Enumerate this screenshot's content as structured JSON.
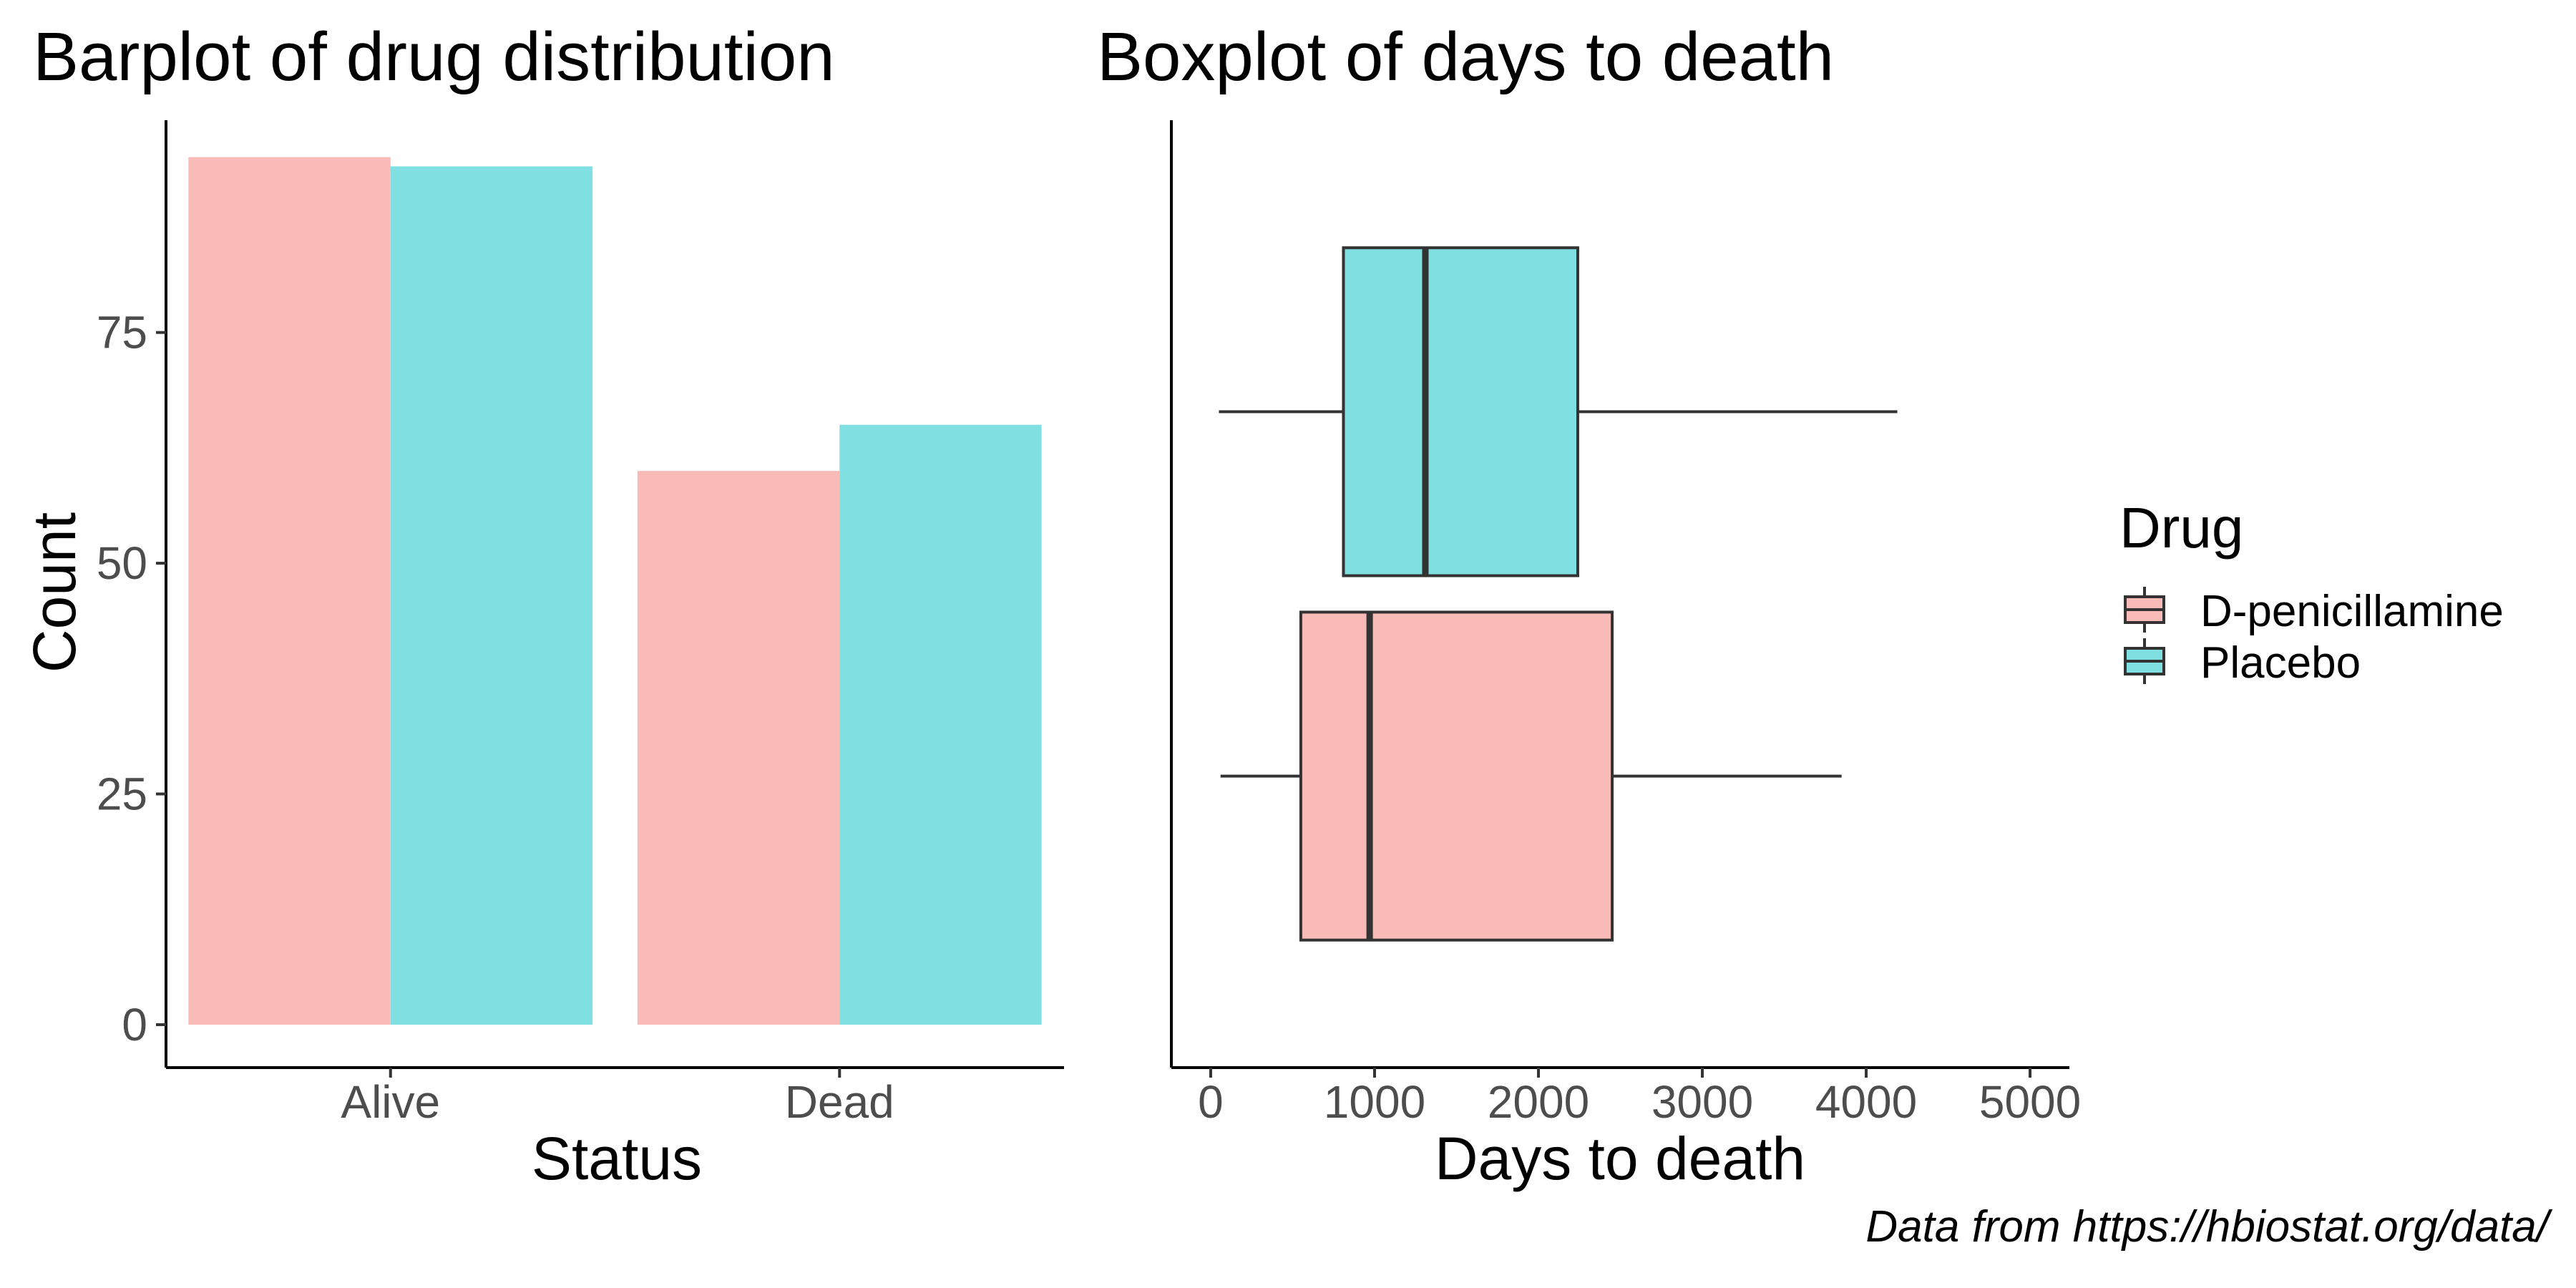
{
  "chart_data": [
    {
      "type": "bar",
      "title": "Barplot of drug distribution",
      "xlabel": "Status",
      "ylabel": "Count",
      "categories": [
        "Alive",
        "Dead"
      ],
      "series": [
        {
          "name": "D-penicillamine",
          "values": [
            94,
            60
          ]
        },
        {
          "name": "Placebo",
          "values": [
            93,
            65
          ]
        }
      ],
      "ylim": [
        0,
        98
      ],
      "yticks": [
        0,
        25,
        50,
        75
      ],
      "grid": false
    },
    {
      "type": "box",
      "title": "Boxplot of days to death",
      "xlabel": "Days to death",
      "ylabel": "",
      "orientation": "horizontal",
      "xlim": [
        -240,
        5240
      ],
      "xticks": [
        0,
        1000,
        2000,
        3000,
        4000,
        5000
      ],
      "boxes": [
        {
          "name": "D-penicillamine",
          "min": 60,
          "q1": 550,
          "median": 970,
          "q3": 2450,
          "max": 3850
        },
        {
          "name": "Placebo",
          "min": 50,
          "q1": 810,
          "median": 1310,
          "q3": 2240,
          "max": 4190
        }
      ],
      "grid": false
    }
  ],
  "legend": {
    "title": "Drug",
    "placement": "right",
    "items": [
      {
        "label": "D-penicillamine",
        "color": "#F8BBB7"
      },
      {
        "label": "Placebo",
        "color": "#80DFE0"
      }
    ]
  },
  "caption": "Data from https://hbiostat.org/data/"
}
